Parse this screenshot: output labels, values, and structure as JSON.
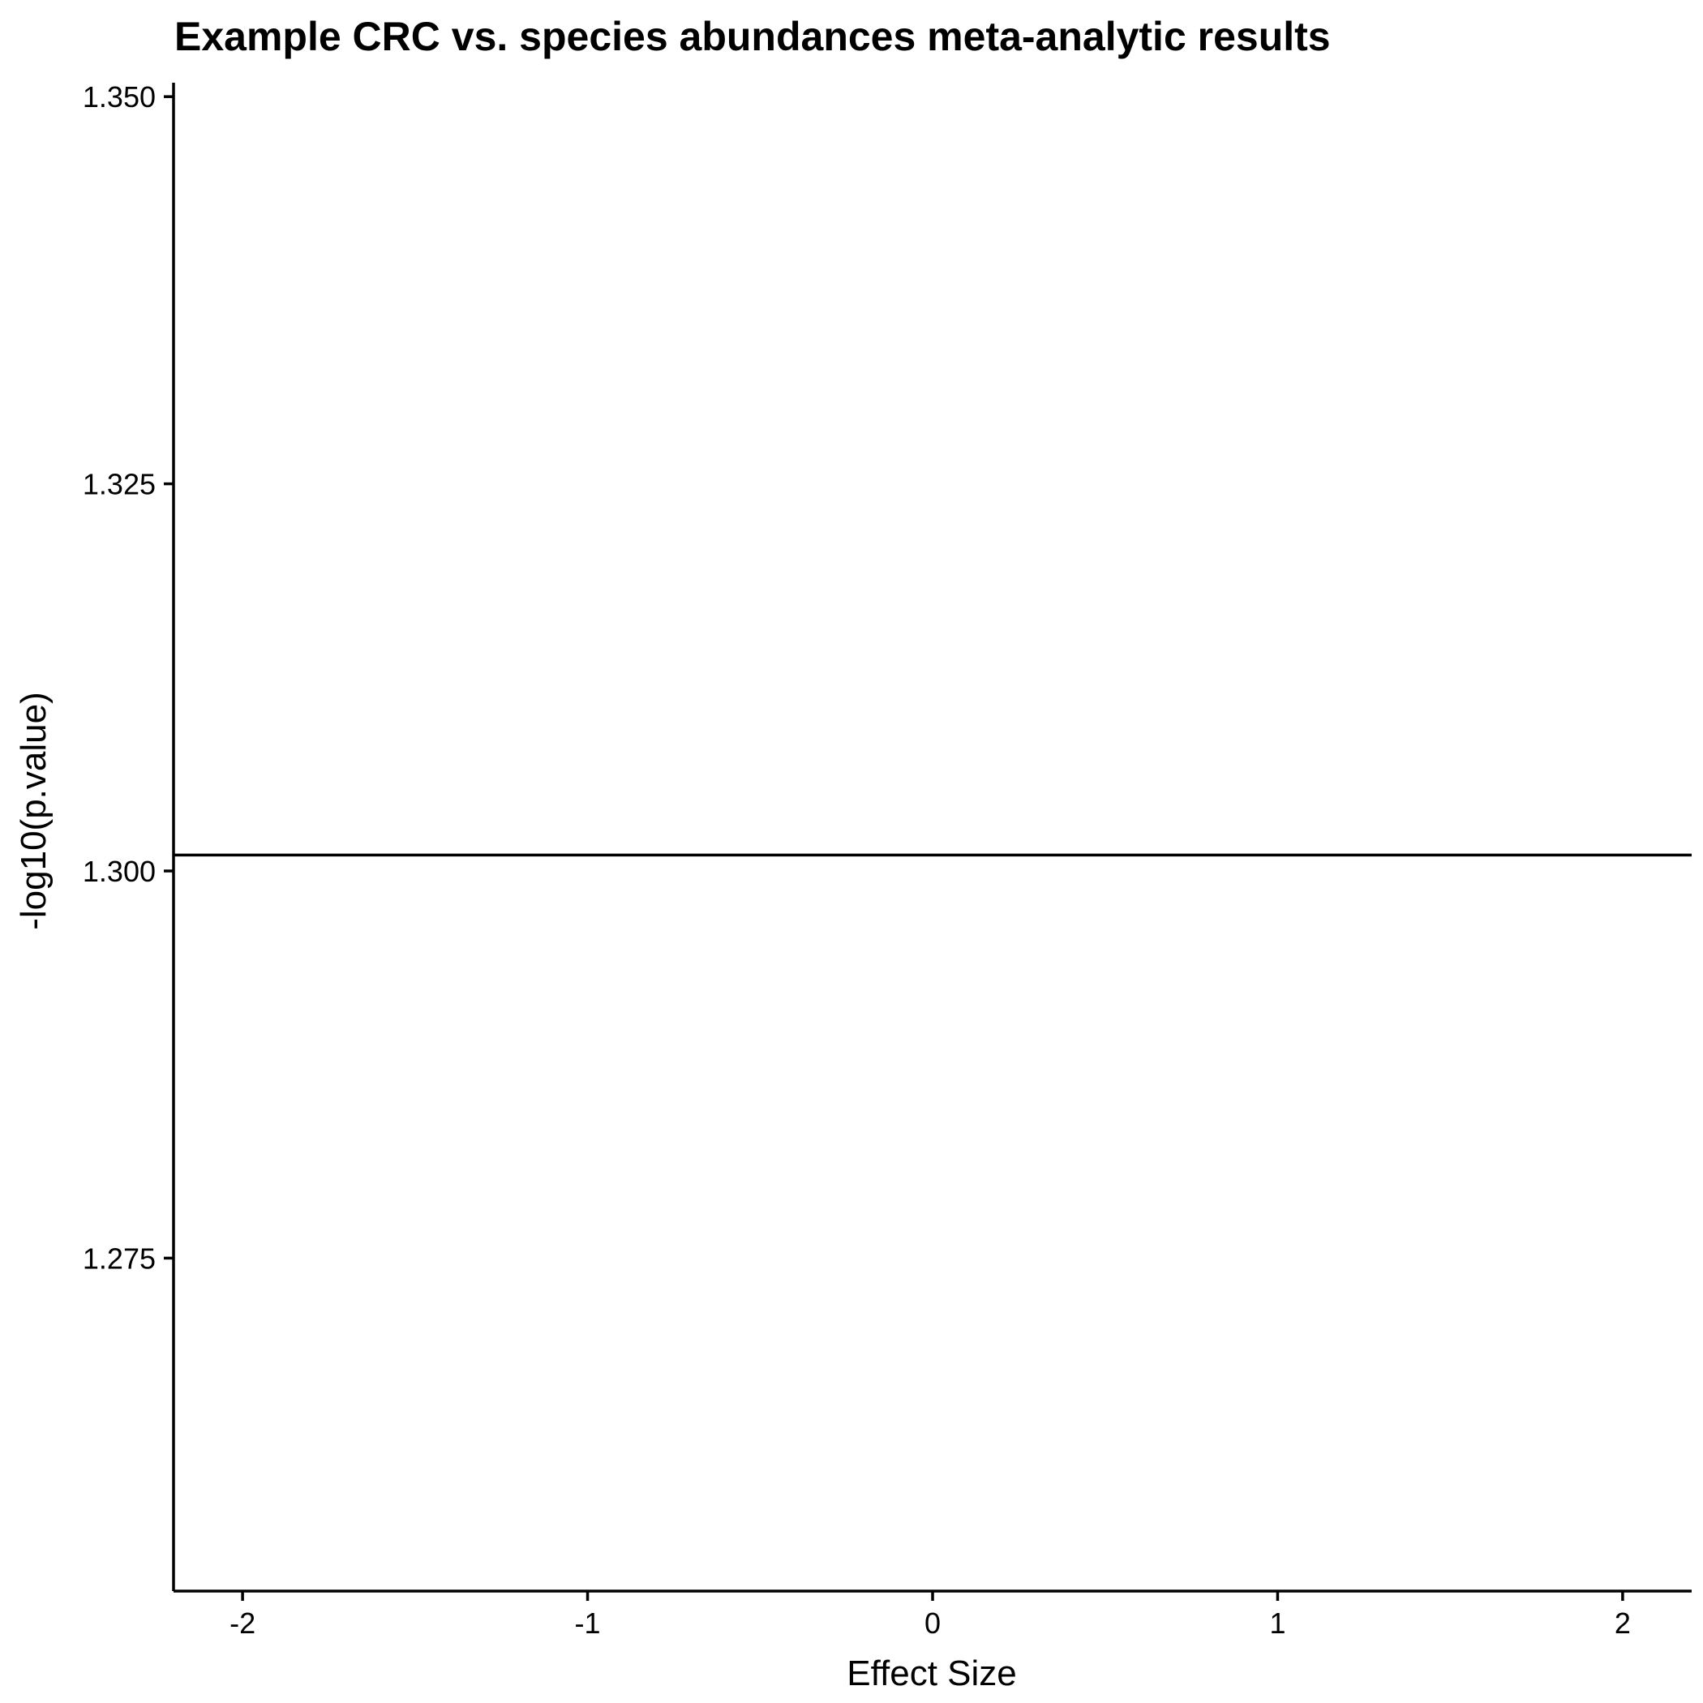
{
  "chart_data": {
    "type": "scatter",
    "title": "Example CRC vs. species abundances meta-analytic results",
    "xlabel": "Effect Size",
    "ylabel": "-log10(p.value)",
    "xlim": [
      -2.2,
      2.2
    ],
    "ylim": [
      1.2535,
      1.3509
    ],
    "x_ticks": [
      -2,
      -1,
      0,
      1,
      2
    ],
    "x_tick_labels": [
      "-2",
      "-1",
      "0",
      "1",
      "2"
    ],
    "y_ticks": [
      1.275,
      1.3,
      1.325,
      1.35
    ],
    "y_tick_labels": [
      "1.275",
      "1.300",
      "1.325",
      "1.350"
    ],
    "series": [],
    "reference_lines": [
      {
        "orientation": "horizontal",
        "y": 1.30103
      }
    ],
    "grid": false,
    "legend": "none",
    "colors": {
      "axis": "#000000",
      "reference_line": "#000000",
      "background": "#ffffff"
    }
  }
}
